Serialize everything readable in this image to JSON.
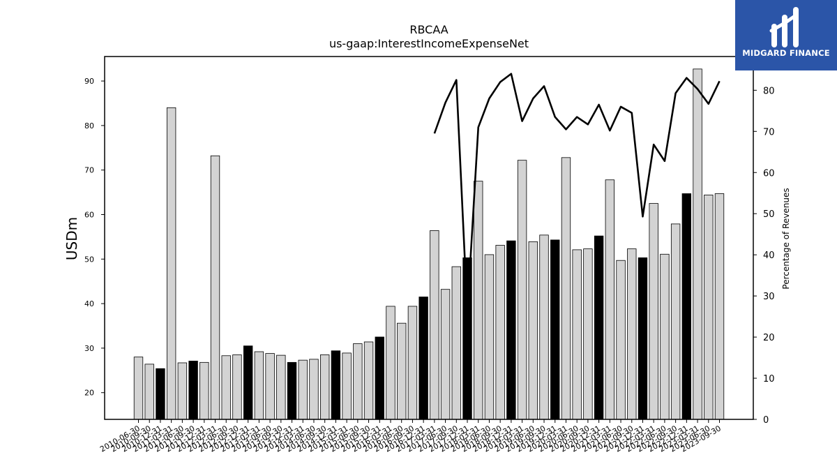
{
  "title": "RBCAA",
  "subtitle": "us-gaap:InterestIncomeExpenseNet",
  "logo": {
    "text": "MIDGARD FINANCE",
    "color": "#2b55a8"
  },
  "chart_data": {
    "type": "bar",
    "categories": [
      "2010-06-30",
      "2010-09-30",
      "2010-12-31",
      "2011-03-31",
      "2011-06-30",
      "2011-09-30",
      "2011-12-31",
      "2012-03-31",
      "2012-06-30",
      "2012-09-30",
      "2012-12-31",
      "2013-03-31",
      "2013-06-30",
      "2013-09-30",
      "2013-12-31",
      "2014-03-31",
      "2014-06-30",
      "2014-09-30",
      "2014-12-31",
      "2015-03-31",
      "2015-06-30",
      "2015-09-30",
      "2015-12-31",
      "2016-03-31",
      "2016-06-30",
      "2016-09-30",
      "2016-12-31",
      "2017-03-31",
      "2017-06-30",
      "2017-09-30",
      "2017-12-31",
      "2018-03-31",
      "2018-06-30",
      "2018-09-30",
      "2018-12-31",
      "2019-03-31",
      "2019-06-30",
      "2019-09-30",
      "2019-12-31",
      "2020-03-31",
      "2020-06-30",
      "2020-09-30",
      "2020-12-31",
      "2021-03-31",
      "2021-06-30",
      "2021-09-30",
      "2021-12-31",
      "2022-03-31",
      "2022-06-30",
      "2022-09-30",
      "2022-12-31",
      "2023-03-31",
      "2023-06-30",
      "2023-09-30"
    ],
    "series": [
      {
        "axis": "left",
        "type": "bar",
        "values": [
          28.0,
          26.4,
          25.4,
          84.0,
          26.7,
          27.1,
          26.8,
          73.2,
          28.3,
          28.5,
          30.5,
          29.2,
          28.8,
          28.4,
          26.8,
          27.3,
          27.5,
          28.5,
          29.4,
          28.9,
          31.0,
          31.4,
          32.5,
          39.4,
          35.6,
          39.4,
          41.5,
          56.4,
          43.2,
          48.3,
          50.3,
          67.5,
          51.0,
          53.1,
          54.1,
          72.2,
          53.9,
          55.4,
          54.3,
          72.8,
          52.1,
          52.3,
          55.2,
          67.8,
          49.7,
          52.3,
          50.3,
          62.5,
          51.1,
          57.9,
          64.7,
          92.7,
          64.4,
          64.7
        ],
        "highlight": [
          false,
          false,
          true,
          false,
          false,
          true,
          false,
          false,
          false,
          false,
          true,
          false,
          false,
          false,
          true,
          false,
          false,
          false,
          true,
          false,
          false,
          false,
          true,
          false,
          false,
          false,
          true,
          false,
          false,
          false,
          true,
          false,
          false,
          false,
          true,
          false,
          false,
          false,
          true,
          false,
          false,
          false,
          true,
          false,
          false,
          false,
          true,
          false,
          false,
          false,
          true,
          false,
          false,
          false
        ]
      },
      {
        "axis": "right",
        "type": "line",
        "values": [
          null,
          null,
          null,
          null,
          null,
          null,
          null,
          null,
          null,
          null,
          null,
          null,
          null,
          null,
          null,
          null,
          null,
          null,
          null,
          null,
          null,
          null,
          null,
          null,
          null,
          null,
          null,
          69.5,
          77.0,
          82.5,
          26.0,
          71.0,
          78.0,
          82.0,
          84.0,
          72.5,
          78.0,
          81.0,
          73.5,
          70.5,
          73.5,
          71.7,
          76.5,
          70.2,
          76.0,
          74.5,
          49.3,
          66.8,
          62.8,
          79.3,
          83.0,
          80.3,
          76.7,
          82.2
        ]
      }
    ],
    "ylabel": "USDm",
    "y2label": "Percentage of Revenues",
    "ylim": [
      14,
      95.5
    ],
    "y2lim": [
      0,
      88.2
    ],
    "yticks": [
      20,
      30,
      40,
      50,
      60,
      70,
      80,
      90
    ],
    "y2ticks": [
      0,
      10,
      20,
      30,
      40,
      50,
      60,
      70,
      80
    ],
    "colors": {
      "bar": "#d3d3d3",
      "bar_highlight": "#000000",
      "line": "#000000"
    }
  }
}
